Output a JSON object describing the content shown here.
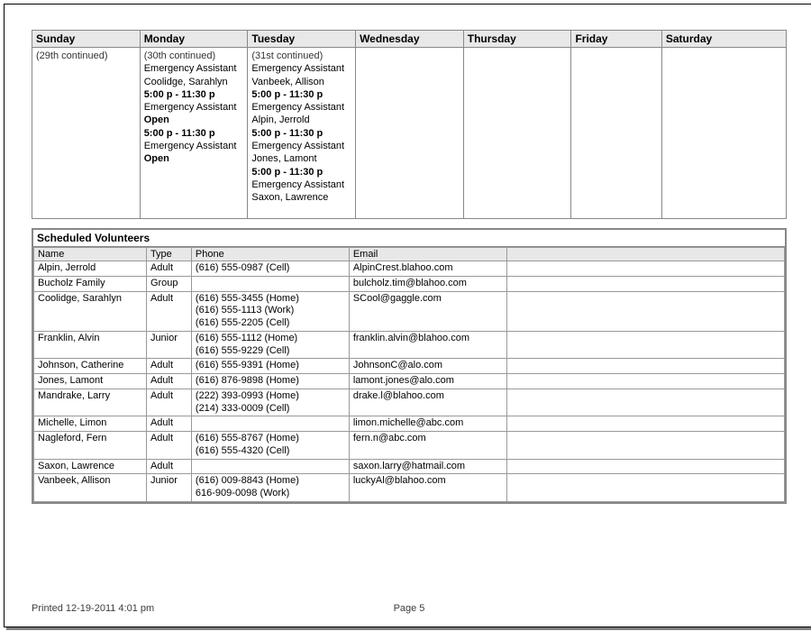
{
  "calendar": {
    "headers": [
      "Sunday",
      "Monday",
      "Tuesday",
      "Wednesday",
      "Thursday",
      "Friday",
      "Saturday"
    ],
    "col_widths": [
      "14.3%",
      "14.3%",
      "14.3%",
      "14.3%",
      "14.3%",
      "12%",
      "16.5%"
    ],
    "cells": {
      "sunday": {
        "continued": "(29th continued)",
        "shifts": []
      },
      "monday": {
        "continued": "(30th continued)",
        "shifts": [
          {
            "title": "Emergency Assistant",
            "person": "Coolidge, Sarahlyn"
          },
          {
            "time": "5:00 p - 11:30 p",
            "title": "Emergency Assistant",
            "person": "Open",
            "person_bold": true
          },
          {
            "time": "5:00 p - 11:30 p",
            "title": "Emergency Assistant",
            "person": "Open",
            "person_bold": true
          }
        ]
      },
      "tuesday": {
        "continued": "(31st continued)",
        "shifts": [
          {
            "title": "Emergency Assistant",
            "person": "Vanbeek, Allison"
          },
          {
            "time": "5:00 p - 11:30 p",
            "title": "Emergency Assistant",
            "person": "Alpin, Jerrold"
          },
          {
            "time": "5:00 p - 11:30 p",
            "title": "Emergency Assistant",
            "person": "Jones, Lamont"
          },
          {
            "time": "5:00 p - 11:30 p",
            "title": "Emergency Assistant",
            "person": "Saxon, Lawrence"
          }
        ]
      },
      "wednesday": {
        "continued": "",
        "shifts": []
      },
      "thursday": {
        "continued": "",
        "shifts": []
      },
      "friday": {
        "continued": "",
        "shifts": []
      },
      "saturday": {
        "continued": "",
        "shifts": []
      }
    }
  },
  "volunteers": {
    "section_title": "Scheduled Volunteers",
    "columns": [
      "Name",
      "Type",
      "Phone",
      "Email",
      ""
    ],
    "col_widths": [
      "15%",
      "6%",
      "21%",
      "21%",
      "37%"
    ],
    "rows": [
      {
        "name": "Alpin, Jerrold",
        "type": "Adult",
        "phone": [
          "(616) 555-0987 (Cell)"
        ],
        "email": "AlpinCrest.blahoo.com"
      },
      {
        "name": "Bucholz Family",
        "type": "Group",
        "phone": [],
        "email": "bulcholz.tim@blahoo.com"
      },
      {
        "name": "Coolidge, Sarahlyn",
        "type": "Adult",
        "phone": [
          "(616) 555-3455 (Home)",
          "(616) 555-1113 (Work)",
          "(616) 555-2205 (Cell)"
        ],
        "email": "SCool@gaggle.com"
      },
      {
        "name": "Franklin, Alvin",
        "type": "Junior",
        "phone": [
          "(616) 555-1112 (Home)",
          "(616) 555-9229 (Cell)"
        ],
        "email": "franklin.alvin@blahoo.com"
      },
      {
        "name": "Johnson, Catherine",
        "type": "Adult",
        "phone": [
          "(616) 555-9391 (Home)"
        ],
        "email": "JohnsonC@alo.com"
      },
      {
        "name": "Jones, Lamont",
        "type": "Adult",
        "phone": [
          "(616) 876-9898 (Home)"
        ],
        "email": "lamont.jones@alo.com"
      },
      {
        "name": "Mandrake, Larry",
        "type": "Adult",
        "phone": [
          "(222) 393-0993 (Home)",
          "(214) 333-0009 (Cell)"
        ],
        "email": "drake.l@blahoo.com"
      },
      {
        "name": "Michelle, Limon",
        "type": "Adult",
        "phone": [],
        "email": "limon.michelle@abc.com"
      },
      {
        "name": "Nagleford, Fern",
        "type": "Adult",
        "phone": [
          "(616) 555-8767 (Home)",
          "(616) 555-4320 (Cell)"
        ],
        "email": "fern.n@abc.com"
      },
      {
        "name": "Saxon, Lawrence",
        "type": "Adult",
        "phone": [],
        "email": "saxon.larry@hatmail.com"
      },
      {
        "name": "Vanbeek, Allison",
        "type": "Junior",
        "phone": [
          "(616) 009-8843 (Home)",
          "616-909-0098 (Work)"
        ],
        "email": "luckyAl@blahoo.com"
      }
    ]
  },
  "footer": {
    "printed": "Printed 12-19-2011 4:01 pm",
    "page": "Page 5"
  }
}
